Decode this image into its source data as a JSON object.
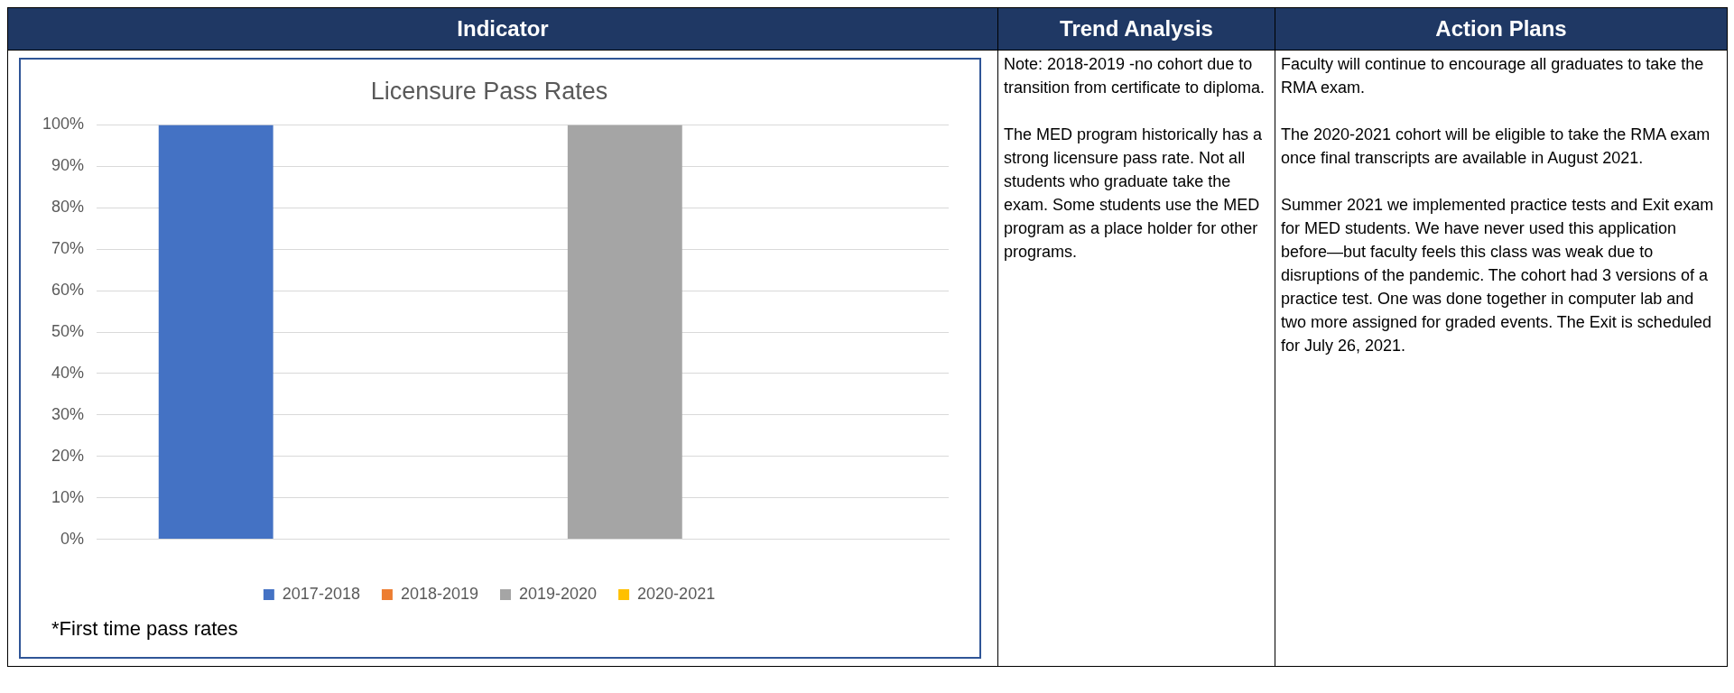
{
  "chart_data": {
    "type": "bar",
    "title": "Licensure Pass Rates",
    "categories": [
      null
    ],
    "series": [
      {
        "name": "2017-2018",
        "color": "#4472c4",
        "values": [
          100
        ]
      },
      {
        "name": "2018-2019",
        "color": "#ed7d31",
        "values": [
          null
        ]
      },
      {
        "name": "2019-2020",
        "color": "#a5a5a5",
        "values": [
          100
        ]
      },
      {
        "name": "2020-2021",
        "color": "#ffc000",
        "values": [
          null
        ]
      }
    ],
    "ylim": [
      0,
      100
    ],
    "yticks": [
      {
        "value": 0,
        "label": "0%"
      },
      {
        "value": 10,
        "label": "10%"
      },
      {
        "value": 20,
        "label": "20%"
      },
      {
        "value": 30,
        "label": "30%"
      },
      {
        "value": 40,
        "label": "40%"
      },
      {
        "value": 50,
        "label": "50%"
      },
      {
        "value": 60,
        "label": "60%"
      },
      {
        "value": 70,
        "label": "70%"
      },
      {
        "value": 80,
        "label": "80%"
      },
      {
        "value": 90,
        "label": "90%"
      },
      {
        "value": 100,
        "label": "100%"
      }
    ],
    "grid": "y",
    "legend": "bottom",
    "annotations": [
      "*First time pass rates",
      "Indicator",
      "Trend Analysis",
      "Action Plans",
      "Note: 2018-2019 -no cohort due to transition from certificate to diploma.",
      "The MED program historically has a strong licensure pass rate.  Not all students who graduate take the exam.  Some students use the MED program as a place holder for other programs.",
      "Faculty will continue to encourage all graduates to take the RMA exam.",
      "The 2020-2021 cohort will be eligible to take the RMA exam once final transcripts are available in August 2021.",
      "Summer 2021 we implemented practice tests and Exit exam for MED students.  We have never used this application before—but faculty feels this class was weak due to disruptions of the pandemic. The cohort had 3 versions of a practice test.  One was done together in computer lab and two more assigned for graded events.  The Exit is scheduled for July 26, 2021."
    ]
  }
}
